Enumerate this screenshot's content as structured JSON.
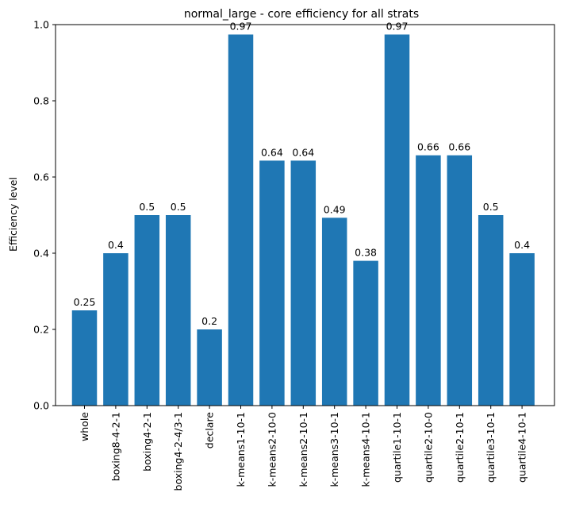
{
  "chart_data": {
    "type": "bar",
    "title": "normal_large - core efficiency for all strats",
    "xlabel": "",
    "ylabel": "Efficiency level",
    "ylim": [
      0,
      1.0
    ],
    "yticks": [
      "0.0",
      "0.2",
      "0.4",
      "0.6",
      "0.8",
      "1.0"
    ],
    "categories": [
      "whole",
      "boxing8-4-2-1",
      "boxing4-2-1",
      "boxing4-2-4/3-1",
      "declare",
      "k-means1-10-1",
      "k-means2-10-0",
      "k-means2-10-1",
      "k-means3-10-1",
      "k-means4-10-1",
      "quartile1-10-1",
      "quartile2-10-0",
      "quartile2-10-1",
      "quartile3-10-1",
      "quartile4-10-1"
    ],
    "values": [
      0.25,
      0.4,
      0.5,
      0.5,
      0.2,
      0.974,
      0.643,
      0.643,
      0.493,
      0.38,
      0.974,
      0.657,
      0.657,
      0.5,
      0.4
    ],
    "data_labels": [
      "0.25",
      "0.4",
      "0.5",
      "0.5",
      "0.2",
      "0.97",
      "0.64",
      "0.64",
      "0.49",
      "0.38",
      "0.97",
      "0.66",
      "0.66",
      "0.5",
      "0.4"
    ],
    "bar_color": "#1f77b4",
    "grid": false,
    "legend": "none"
  }
}
